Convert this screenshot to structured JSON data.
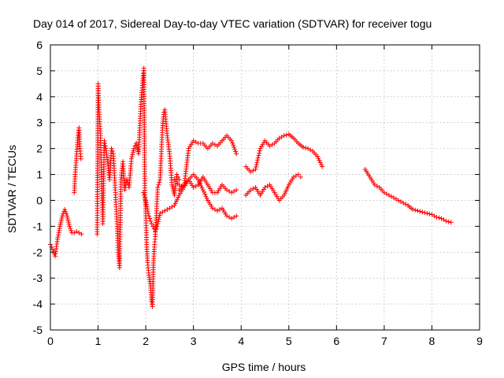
{
  "chart_data": {
    "type": "scatter",
    "title": "Day 014 of 2017, Sidereal Day-to-day VTEC variation (SDTVAR) for receiver togu",
    "xlabel": "GPS time / hours",
    "ylabel": "SDTVAR / TECUs",
    "xlim": [
      0,
      9
    ],
    "ylim": [
      -5,
      6
    ],
    "x_ticks": [
      "0",
      "1",
      "2",
      "3",
      "4",
      "5",
      "6",
      "7",
      "8",
      "9"
    ],
    "y_ticks": [
      "-5",
      "-4",
      "-3",
      "-2",
      "-1",
      "0",
      "1",
      "2",
      "3",
      "4",
      "5",
      "6"
    ],
    "grid": true,
    "marker": "+",
    "series": [
      {
        "name": "SDTVAR",
        "color": "#ff0000",
        "segments": [
          [
            [
              0.0,
              -1.7
            ],
            [
              0.05,
              -1.9
            ],
            [
              0.1,
              -2.15
            ],
            [
              0.15,
              -1.5
            ],
            [
              0.2,
              -1.0
            ],
            [
              0.25,
              -0.6
            ],
            [
              0.3,
              -0.35
            ],
            [
              0.35,
              -0.6
            ],
            [
              0.4,
              -1.0
            ],
            [
              0.45,
              -1.25
            ],
            [
              0.5,
              -1.25
            ],
            [
              0.55,
              -1.2
            ],
            [
              0.6,
              -1.25
            ],
            [
              0.65,
              -1.3
            ]
          ],
          [
            [
              0.5,
              0.3
            ],
            [
              0.52,
              1.0
            ],
            [
              0.55,
              1.8
            ],
            [
              0.58,
              2.5
            ],
            [
              0.6,
              2.8
            ],
            [
              0.62,
              2.0
            ],
            [
              0.64,
              1.6
            ]
          ],
          [
            [
              0.98,
              -1.3
            ],
            [
              1.0,
              4.5
            ],
            [
              1.02,
              3.5
            ],
            [
              1.05,
              2.5
            ],
            [
              1.07,
              1.0
            ],
            [
              1.1,
              -0.9
            ],
            [
              1.13,
              2.3
            ],
            [
              1.16,
              2.0
            ],
            [
              1.2,
              1.5
            ],
            [
              1.24,
              0.8
            ],
            [
              1.28,
              2.0
            ],
            [
              1.32,
              1.8
            ],
            [
              1.36,
              0.4
            ],
            [
              1.4,
              -1.0
            ],
            [
              1.42,
              -2.0
            ],
            [
              1.45,
              -2.6
            ],
            [
              1.48,
              0.8
            ],
            [
              1.52,
              1.5
            ],
            [
              1.56,
              0.4
            ],
            [
              1.6,
              0.8
            ],
            [
              1.65,
              0.5
            ],
            [
              1.7,
              1.6
            ],
            [
              1.75,
              2.0
            ],
            [
              1.8,
              2.2
            ],
            [
              1.85,
              1.8
            ],
            [
              1.9,
              3.8
            ],
            [
              1.94,
              4.7
            ],
            [
              1.96,
              5.1
            ],
            [
              1.98,
              0.3
            ],
            [
              2.0,
              -0.5
            ],
            [
              2.02,
              -1.8
            ],
            [
              2.04,
              -2.4
            ],
            [
              2.06,
              -2.8
            ],
            [
              2.1,
              -3.3
            ],
            [
              2.12,
              -3.9
            ],
            [
              2.14,
              -4.1
            ],
            [
              2.16,
              -2.5
            ],
            [
              2.18,
              -1.8
            ],
            [
              2.2,
              -1.4
            ],
            [
              2.25,
              0.5
            ],
            [
              2.3,
              0.8
            ],
            [
              2.35,
              2.8
            ],
            [
              2.38,
              3.4
            ],
            [
              2.4,
              3.5
            ],
            [
              2.45,
              2.5
            ],
            [
              2.5,
              1.8
            ],
            [
              2.55,
              0.6
            ],
            [
              2.6,
              0.2
            ],
            [
              2.65,
              1.0
            ],
            [
              2.7,
              0.8
            ]
          ],
          [
            [
              1.95,
              0.3
            ],
            [
              2.0,
              0.0
            ],
            [
              2.05,
              -0.5
            ],
            [
              2.1,
              -0.8
            ],
            [
              2.15,
              -1.0
            ],
            [
              2.2,
              -1.2
            ],
            [
              2.25,
              -0.9
            ],
            [
              2.3,
              -0.5
            ],
            [
              2.4,
              -0.4
            ],
            [
              2.5,
              -0.3
            ],
            [
              2.6,
              -0.2
            ],
            [
              2.7,
              0.2
            ],
            [
              2.8,
              0.5
            ],
            [
              2.9,
              0.8
            ],
            [
              3.0,
              1.0
            ],
            [
              3.1,
              0.8
            ],
            [
              3.2,
              0.4
            ],
            [
              3.3,
              0.0
            ],
            [
              3.4,
              -0.3
            ],
            [
              3.5,
              -0.4
            ],
            [
              3.6,
              -0.3
            ],
            [
              3.7,
              -0.6
            ],
            [
              3.8,
              -0.7
            ],
            [
              3.9,
              -0.6
            ]
          ],
          [
            [
              2.6,
              0.8
            ],
            [
              2.7,
              0.6
            ],
            [
              2.8,
              0.5
            ],
            [
              2.9,
              2.0
            ],
            [
              3.0,
              2.3
            ],
            [
              3.1,
              2.2
            ],
            [
              3.2,
              2.2
            ],
            [
              3.3,
              2.0
            ],
            [
              3.4,
              2.2
            ],
            [
              3.5,
              2.1
            ],
            [
              3.6,
              2.3
            ],
            [
              3.7,
              2.5
            ],
            [
              3.8,
              2.3
            ],
            [
              3.9,
              1.8
            ]
          ],
          [
            [
              2.7,
              0.4
            ],
            [
              2.8,
              0.6
            ],
            [
              2.9,
              0.8
            ],
            [
              3.0,
              0.5
            ],
            [
              3.1,
              0.6
            ],
            [
              3.2,
              0.9
            ],
            [
              3.3,
              0.6
            ],
            [
              3.4,
              0.3
            ],
            [
              3.5,
              0.3
            ],
            [
              3.6,
              0.6
            ],
            [
              3.7,
              0.4
            ],
            [
              3.8,
              0.3
            ],
            [
              3.9,
              0.4
            ]
          ],
          [
            [
              4.1,
              1.3
            ],
            [
              4.2,
              1.1
            ],
            [
              4.3,
              1.2
            ],
            [
              4.4,
              2.0
            ],
            [
              4.5,
              2.3
            ],
            [
              4.6,
              2.1
            ],
            [
              4.7,
              2.2
            ],
            [
              4.8,
              2.4
            ],
            [
              4.9,
              2.5
            ],
            [
              5.0,
              2.55
            ],
            [
              5.1,
              2.4
            ],
            [
              5.2,
              2.2
            ],
            [
              5.3,
              2.05
            ],
            [
              5.4,
              2.0
            ],
            [
              5.5,
              1.9
            ],
            [
              5.6,
              1.7
            ],
            [
              5.7,
              1.3
            ]
          ],
          [
            [
              4.1,
              0.2
            ],
            [
              4.2,
              0.4
            ],
            [
              4.3,
              0.5
            ],
            [
              4.4,
              0.2
            ],
            [
              4.5,
              0.5
            ],
            [
              4.6,
              0.6
            ],
            [
              4.7,
              0.3
            ],
            [
              4.8,
              0.0
            ],
            [
              4.9,
              0.2
            ],
            [
              5.0,
              0.6
            ],
            [
              5.1,
              0.9
            ],
            [
              5.2,
              1.0
            ],
            [
              5.25,
              0.9
            ]
          ],
          [
            [
              6.6,
              1.2
            ],
            [
              6.7,
              0.9
            ],
            [
              6.8,
              0.6
            ],
            [
              6.9,
              0.5
            ],
            [
              7.0,
              0.3
            ],
            [
              7.1,
              0.2
            ],
            [
              7.2,
              0.1
            ],
            [
              7.3,
              0.0
            ],
            [
              7.4,
              -0.1
            ],
            [
              7.5,
              -0.2
            ],
            [
              7.6,
              -0.35
            ],
            [
              7.7,
              -0.4
            ],
            [
              7.8,
              -0.45
            ],
            [
              7.9,
              -0.5
            ],
            [
              8.0,
              -0.55
            ],
            [
              8.1,
              -0.65
            ],
            [
              8.2,
              -0.7
            ],
            [
              8.3,
              -0.8
            ],
            [
              8.4,
              -0.85
            ]
          ]
        ]
      }
    ]
  }
}
